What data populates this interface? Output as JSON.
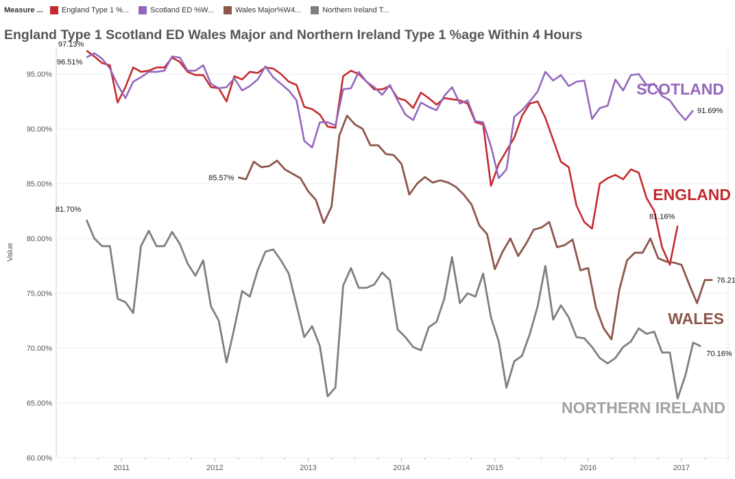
{
  "legend": {
    "title": "Measure ...",
    "items": [
      {
        "label": "England Type 1 %...",
        "color": "#c5292d"
      },
      {
        "label": "Scotland ED %W...",
        "color": "#9467bd"
      },
      {
        "label": "Wales Major%W4...",
        "color": "#8c564b"
      },
      {
        "label": "Northern Ireland T...",
        "color": "#7f7f7f"
      }
    ]
  },
  "chart_data": {
    "type": "line",
    "title": "England Type 1 Scotland ED Wales Major and Northern Ireland Type 1 %age Within 4 Hours",
    "ylabel": "Value",
    "xlabel": "",
    "ylim": [
      60,
      97.5
    ],
    "xlim": [
      2010.3,
      2017.5
    ],
    "y_ticks": [
      60,
      65,
      70,
      75,
      80,
      85,
      90,
      95
    ],
    "y_tick_labels": [
      "60.00%",
      "65.00%",
      "70.00%",
      "75.00%",
      "80.00%",
      "85.00%",
      "90.00%",
      "95.00%"
    ],
    "x_ticks": [
      2011,
      2012,
      2013,
      2014,
      2015,
      2016,
      2017
    ],
    "x_tick_labels": [
      "2011",
      "2012",
      "2013",
      "2014",
      "2015",
      "2016",
      "2017"
    ],
    "grid": "horizontal",
    "series": [
      {
        "name": "England Type 1 %age Within 4 Hours",
        "color": "#c5292d",
        "end_label": "ENGLAND",
        "start_x": 2010.625,
        "values": [
          97.13,
          96.6,
          96.0,
          95.8,
          92.4,
          93.8,
          95.6,
          95.2,
          95.3,
          95.6,
          95.6,
          96.5,
          96.1,
          95.2,
          94.9,
          94.9,
          93.8,
          93.7,
          92.5,
          94.8,
          94.5,
          95.2,
          95.1,
          95.6,
          95.5,
          95.0,
          94.3,
          94.0,
          92.0,
          91.8,
          91.3,
          90.2,
          90.1,
          94.8,
          95.3,
          95.0,
          94.3,
          93.6,
          93.6,
          93.9,
          92.8,
          92.6,
          91.9,
          93.3,
          92.8,
          92.2,
          92.8,
          92.7,
          92.6,
          92.3,
          90.6,
          90.4,
          84.8,
          86.8,
          88.0,
          89.2,
          91.2,
          92.3,
          92.5,
          91.0,
          89.0,
          87.0,
          86.5,
          83.0,
          81.5,
          80.9,
          85.0,
          85.5,
          85.8,
          85.4,
          86.3,
          86.0,
          83.7,
          82.5,
          79.2,
          77.6,
          81.16
        ],
        "first_label": "97.13%",
        "last_label": "81.16%"
      },
      {
        "name": "Scotland ED %age Within 4 Hours",
        "color": "#9467bd",
        "end_label": "SCOTLAND",
        "start_x": 2010.625,
        "values": [
          96.51,
          96.9,
          96.4,
          95.5,
          94.0,
          92.8,
          94.3,
          94.7,
          95.2,
          95.2,
          95.3,
          96.6,
          96.5,
          95.3,
          95.3,
          95.8,
          94.1,
          93.7,
          93.8,
          94.6,
          93.5,
          93.9,
          94.5,
          95.7,
          94.7,
          94.1,
          93.5,
          92.6,
          88.9,
          88.3,
          90.6,
          90.6,
          90.3,
          93.6,
          93.7,
          95.2,
          94.3,
          93.8,
          93.1,
          94.0,
          92.6,
          91.3,
          90.8,
          92.4,
          92.0,
          91.7,
          93.0,
          93.8,
          92.3,
          92.6,
          90.7,
          90.6,
          88.4,
          85.5,
          86.3,
          91.1,
          91.7,
          92.5,
          93.4,
          95.2,
          94.4,
          94.9,
          93.9,
          94.3,
          94.4,
          90.9,
          91.9,
          92.1,
          94.5,
          93.5,
          94.9,
          95.0,
          94.0,
          94.1,
          93.0,
          92.6,
          91.6,
          90.8,
          91.69
        ],
        "first_label": "96.51%",
        "last_label": "91.69%"
      },
      {
        "name": "Wales Major %age Within 4 Hours",
        "color": "#8c564b",
        "end_label": "WALES",
        "start_x": 2012.25,
        "values": [
          85.57,
          85.4,
          87.0,
          86.5,
          86.6,
          87.1,
          86.3,
          85.9,
          85.5,
          84.3,
          83.5,
          81.4,
          82.9,
          89.4,
          91.2,
          90.4,
          90.0,
          88.5,
          88.5,
          87.7,
          87.6,
          86.8,
          84.0,
          85.0,
          85.6,
          85.1,
          85.3,
          85.1,
          84.7,
          84.0,
          83.1,
          81.2,
          80.4,
          77.2,
          78.8,
          80.0,
          78.4,
          79.5,
          80.8,
          81.0,
          81.5,
          79.2,
          79.4,
          79.9,
          77.1,
          77.3,
          73.7,
          71.8,
          70.8,
          75.3,
          78.0,
          78.7,
          78.7,
          80.0,
          78.2,
          77.9,
          77.8,
          77.6,
          75.8,
          74.1,
          76.21,
          76.21
        ],
        "first_label": "85.57%",
        "last_label": "76.21%"
      },
      {
        "name": "Northern Ireland Type 1 %age Within 4 Hours",
        "color": "#7f7f7f",
        "end_label": "NORTHERN IRELAND",
        "start_x": 2010.625,
        "values": [
          81.7,
          80.0,
          79.3,
          79.3,
          74.5,
          74.2,
          73.2,
          79.3,
          80.7,
          79.3,
          79.3,
          80.6,
          79.5,
          77.7,
          76.6,
          78.0,
          73.8,
          72.5,
          68.7,
          71.8,
          75.2,
          74.7,
          77.1,
          78.8,
          79.0,
          78.0,
          76.8,
          73.9,
          71.0,
          72.0,
          70.2,
          65.6,
          66.4,
          75.7,
          77.3,
          75.5,
          75.5,
          75.8,
          76.9,
          76.2,
          71.7,
          71.0,
          70.1,
          69.8,
          71.9,
          72.4,
          74.5,
          78.3,
          74.1,
          75.0,
          74.7,
          76.8,
          72.8,
          70.6,
          66.4,
          68.8,
          69.3,
          71.3,
          73.8,
          77.5,
          72.6,
          73.9,
          72.8,
          71.0,
          70.9,
          70.1,
          69.1,
          68.6,
          69.1,
          70.1,
          70.6,
          71.8,
          71.3,
          71.5,
          69.6,
          69.6,
          65.4,
          67.5,
          70.5,
          70.16
        ],
        "first_label": "81.70%",
        "last_label": "70.16%"
      }
    ]
  }
}
